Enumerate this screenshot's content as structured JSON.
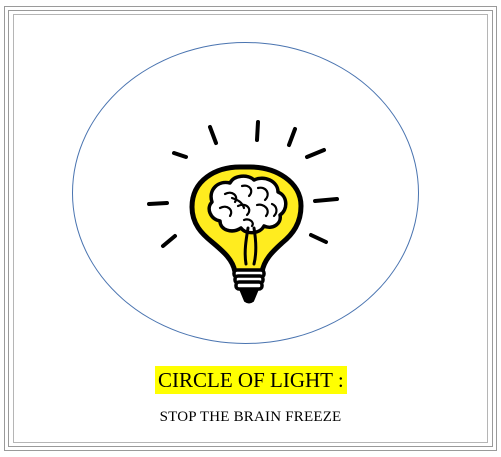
{
  "document": {
    "title": "CIRCLE OF LIGHT :",
    "subtitle": "STOP THE BRAIN FREEZE"
  },
  "illustration": {
    "icon": "lightbulb-brain-icon",
    "bulb_color": "#ffec1f",
    "outline_color": "#000000",
    "ellipse_color": "#4a74b0"
  },
  "colors": {
    "highlight": "#ffff00",
    "frame": "#9a9a9a"
  }
}
